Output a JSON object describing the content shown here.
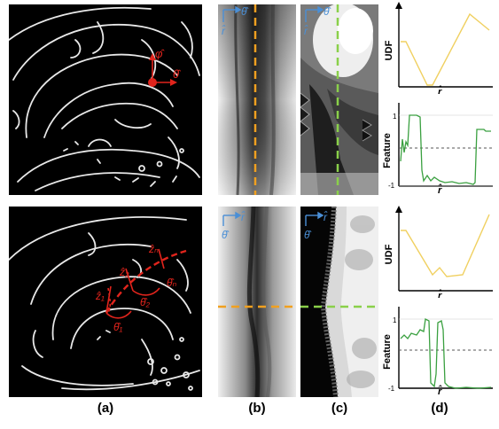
{
  "figure": {
    "captions": [
      "(a)",
      "(b)",
      "(c)",
      "(d)"
    ],
    "panel_a_top": {
      "labels": {
        "phi": "φ̂",
        "theta": "θ̂"
      },
      "marker_color": "#e0241c"
    },
    "panel_a_bottom": {
      "labels": {
        "z1": "ẑ₁",
        "z2": "ẑ₂",
        "zn": "ẑₙ",
        "theta1": "θ̂₁",
        "theta2": "θ̂₂",
        "thetan": "θ̂ₙ"
      },
      "marker_color": "#e0241c"
    },
    "panel_b_top": {
      "axis_labels": {
        "r": "r̂",
        "theta": "θ̂"
      },
      "dash_color": "#f0a020",
      "axis_color": "#4a8fd6"
    },
    "panel_b_bottom": {
      "axis_labels": {
        "r": "r̂",
        "theta": "θ̂"
      },
      "dash_color": "#f0a020",
      "axis_color": "#4a8fd6"
    },
    "panel_c_top": {
      "axis_labels": {
        "r": "r̂",
        "theta": "θ̂"
      },
      "dash_color": "#8ad04a",
      "axis_color": "#4a8fd6"
    },
    "panel_c_bottom": {
      "axis_labels": {
        "r": "r̂",
        "theta": "θ̂"
      },
      "dash_color": "#8ad04a",
      "axis_color": "#4a8fd6"
    },
    "plot_udf_top": {
      "ylabel": "UDF",
      "xlabel": "r̂",
      "color": "#f0d060"
    },
    "plot_feature_top": {
      "ylabel": "Feature",
      "xlabel": "r̂",
      "ytick_top": "1",
      "ytick_bottom": "-1",
      "color": "#3aa040"
    },
    "plot_udf_bottom": {
      "ylabel": "UDF",
      "xlabel": "r̂",
      "color": "#f0d060"
    },
    "plot_feature_bottom": {
      "ylabel": "Feature",
      "xlabel": "r̂",
      "ytick_top": "1",
      "ytick_bottom": "-1",
      "color": "#3aa040"
    }
  }
}
